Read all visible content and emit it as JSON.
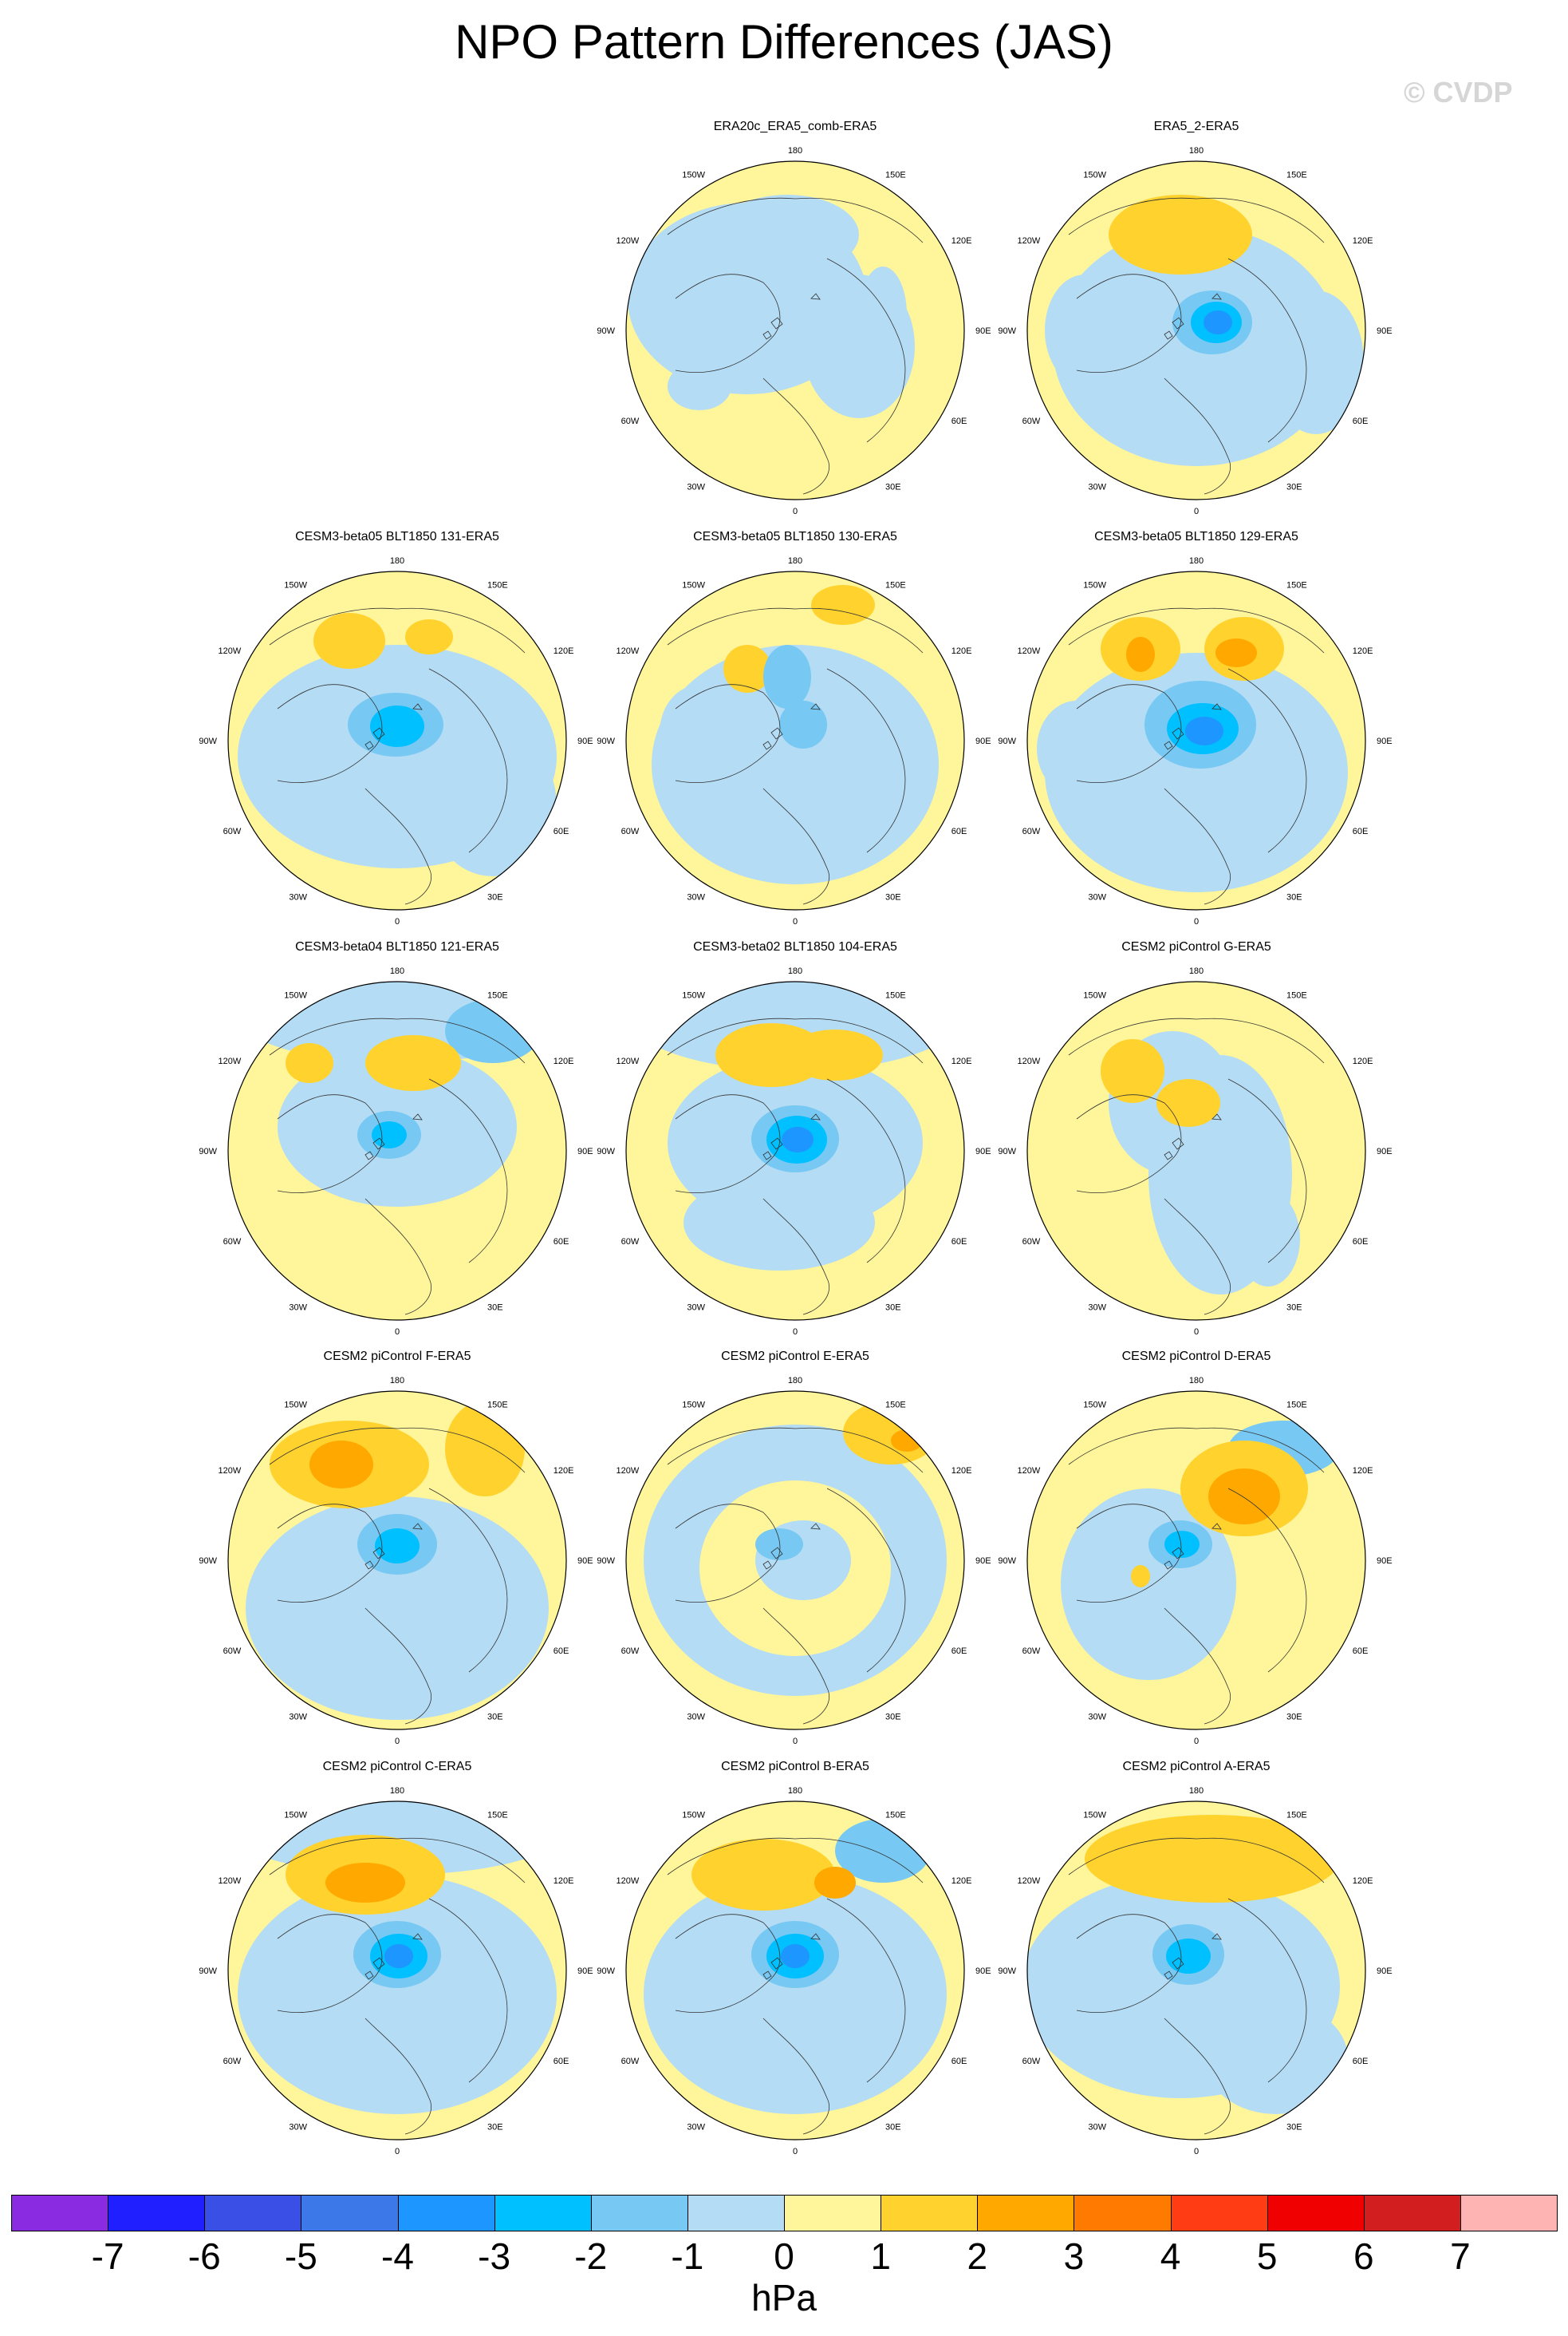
{
  "title": "NPO Pattern Differences (JAS)",
  "watermark": "© CVDP",
  "units": "hPa",
  "lon_labels": [
    "180",
    "150E",
    "120E",
    "90E",
    "60E",
    "30E",
    "0",
    "30W",
    "60W",
    "90W",
    "120W",
    "150W"
  ],
  "colorbar": {
    "ticks": [
      "-7",
      "-6",
      "-5",
      "-4",
      "-3",
      "-2",
      "-1",
      "0",
      "1",
      "2",
      "3",
      "4",
      "5",
      "6",
      "7"
    ],
    "colors": [
      "#8a2be2",
      "#1f1fff",
      "#3a4fe6",
      "#3c78e8",
      "#1e96ff",
      "#00c0ff",
      "#77c8f2",
      "#b4dcf4",
      "#fff59a",
      "#ffd22e",
      "#ffa800",
      "#ff7a00",
      "#ff3c14",
      "#f00000",
      "#d21e1e",
      "#ffb4b4"
    ]
  },
  "panels": [
    {
      "title": "ERA20c_ERA5_comb-ERA5",
      "style": "era20c"
    },
    {
      "title": "ERA5_2-ERA5",
      "style": "era5_2"
    },
    {
      "title": "CESM3-beta05 BLT1850 131-ERA5",
      "style": "m131"
    },
    {
      "title": "CESM3-beta05 BLT1850 130-ERA5",
      "style": "m130"
    },
    {
      "title": "CESM3-beta05 BLT1850 129-ERA5",
      "style": "m129"
    },
    {
      "title": "CESM3-beta04 BLT1850 121-ERA5",
      "style": "m121"
    },
    {
      "title": "CESM3-beta02 BLT1850 104-ERA5",
      "style": "m104"
    },
    {
      "title": "CESM2 piControl G-ERA5",
      "style": "g"
    },
    {
      "title": "CESM2 piControl F-ERA5",
      "style": "f"
    },
    {
      "title": "CESM2 piControl E-ERA5",
      "style": "e"
    },
    {
      "title": "CESM2 piControl D-ERA5",
      "style": "d"
    },
    {
      "title": "CESM2 piControl C-ERA5",
      "style": "c"
    },
    {
      "title": "CESM2 piControl B-ERA5",
      "style": "b"
    },
    {
      "title": "CESM2 piControl A-ERA5",
      "style": "a"
    }
  ]
}
